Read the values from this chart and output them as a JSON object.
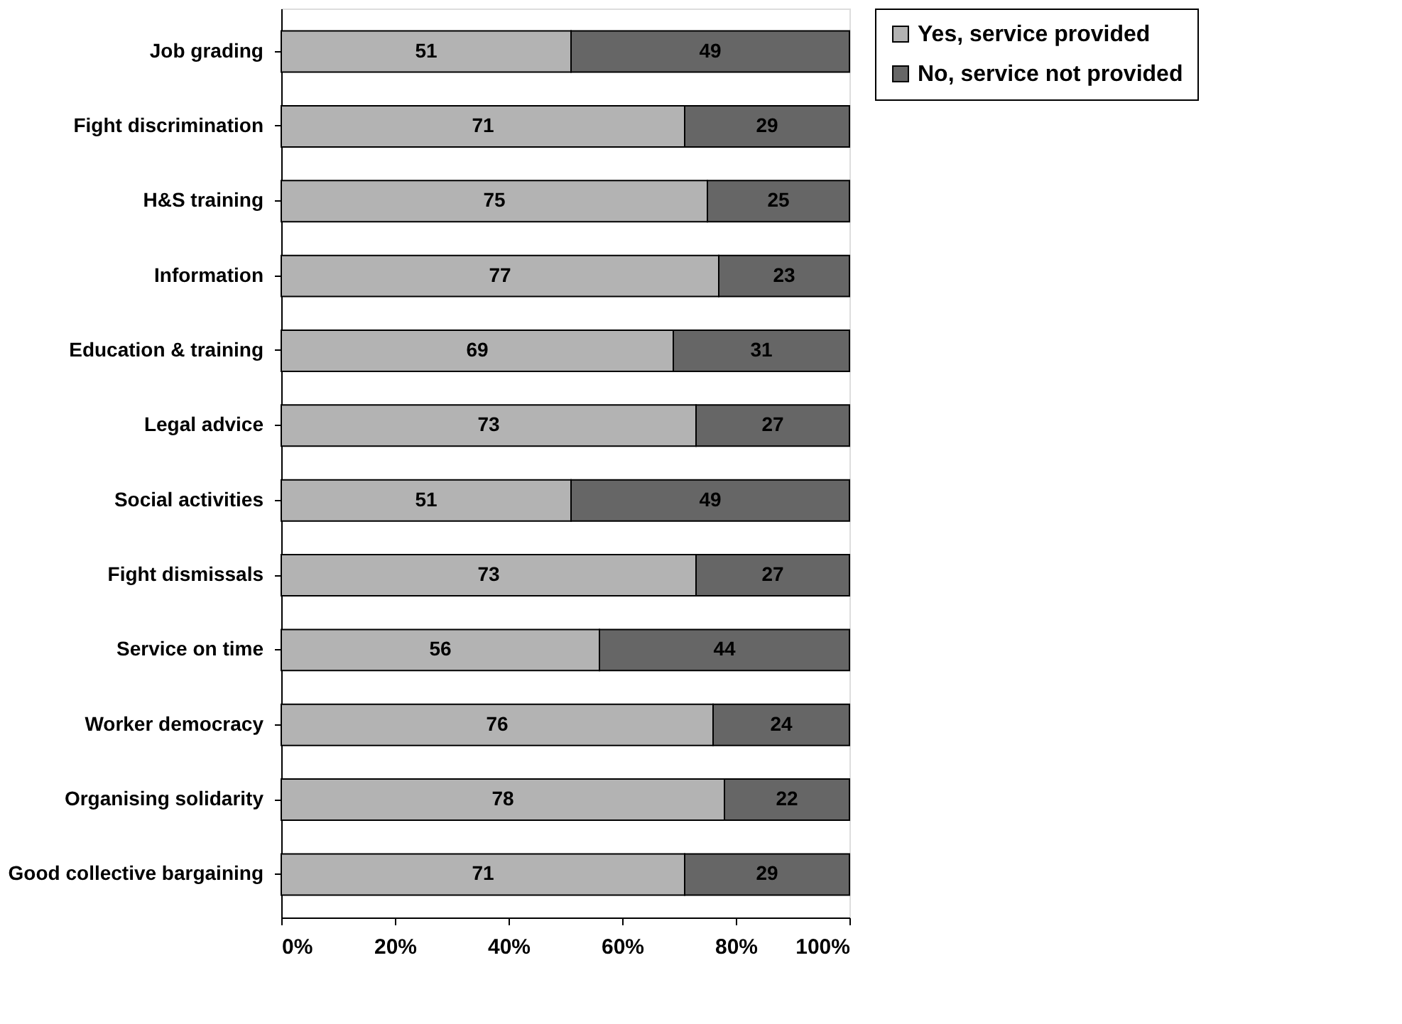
{
  "chart_data": {
    "type": "bar",
    "orientation": "horizontal",
    "stacked": true,
    "data_labels": true,
    "legend": "right",
    "grid": false,
    "categories": [
      "Job grading",
      "Fight discrimination",
      "H&S training",
      "Information",
      "Education & training",
      "Legal advice",
      "Social activities",
      "Fight dismissals",
      "Service on time",
      "Worker democracy",
      "Organising solidarity",
      "Good collective bargaining"
    ],
    "series": [
      {
        "name": "Yes, service provided",
        "color": "#b3b3b3",
        "values": [
          51,
          71,
          75,
          77,
          69,
          73,
          51,
          73,
          56,
          76,
          78,
          71
        ]
      },
      {
        "name": "No, service not provided",
        "color": "#666666",
        "values": [
          49,
          29,
          25,
          23,
          31,
          27,
          49,
          27,
          44,
          24,
          22,
          29
        ]
      }
    ],
    "xlim": [
      0,
      100
    ],
    "xticks": [
      {
        "value": 0,
        "label": "0%"
      },
      {
        "value": 20,
        "label": "20%"
      },
      {
        "value": 40,
        "label": "40%"
      },
      {
        "value": 60,
        "label": "60%"
      },
      {
        "value": 80,
        "label": "80%"
      },
      {
        "value": 100,
        "label": "100%"
      }
    ]
  }
}
